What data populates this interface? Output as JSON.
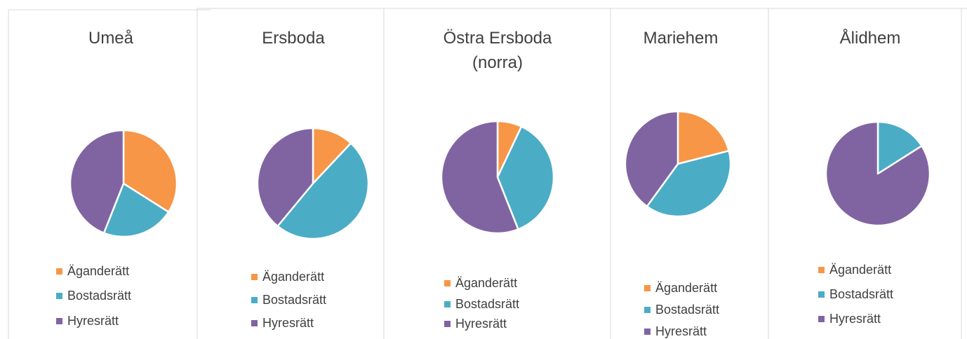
{
  "chart_data": [
    {
      "type": "pie",
      "title": "Umeå",
      "categories": [
        "Äganderätt",
        "Bostadsrätt",
        "Hyresrätt"
      ],
      "values": [
        34,
        22,
        44
      ],
      "colors": [
        "#f79646",
        "#4bacc6",
        "#8064a2"
      ]
    },
    {
      "type": "pie",
      "title": "Ersboda",
      "categories": [
        "Äganderätt",
        "Bostadsrätt",
        "Hyresrätt"
      ],
      "values": [
        12,
        49,
        39
      ],
      "colors": [
        "#f79646",
        "#4bacc6",
        "#8064a2"
      ]
    },
    {
      "type": "pie",
      "title": "Östra Ersboda (norra)",
      "categories": [
        "Äganderätt",
        "Bostadsrätt",
        "Hyresrätt"
      ],
      "values": [
        7,
        37,
        56
      ],
      "colors": [
        "#f79646",
        "#4bacc6",
        "#8064a2"
      ]
    },
    {
      "type": "pie",
      "title": "Mariehem",
      "categories": [
        "Äganderätt",
        "Bostadsrätt",
        "Hyresrätt"
      ],
      "values": [
        21,
        39,
        40
      ],
      "colors": [
        "#f79646",
        "#4bacc6",
        "#8064a2"
      ]
    },
    {
      "type": "pie",
      "title": "Ålidhem",
      "categories": [
        "Äganderätt",
        "Bostadsrätt",
        "Hyresrätt"
      ],
      "values": [
        0,
        16,
        84
      ],
      "colors": [
        "#f79646",
        "#4bacc6",
        "#8064a2"
      ]
    }
  ]
}
